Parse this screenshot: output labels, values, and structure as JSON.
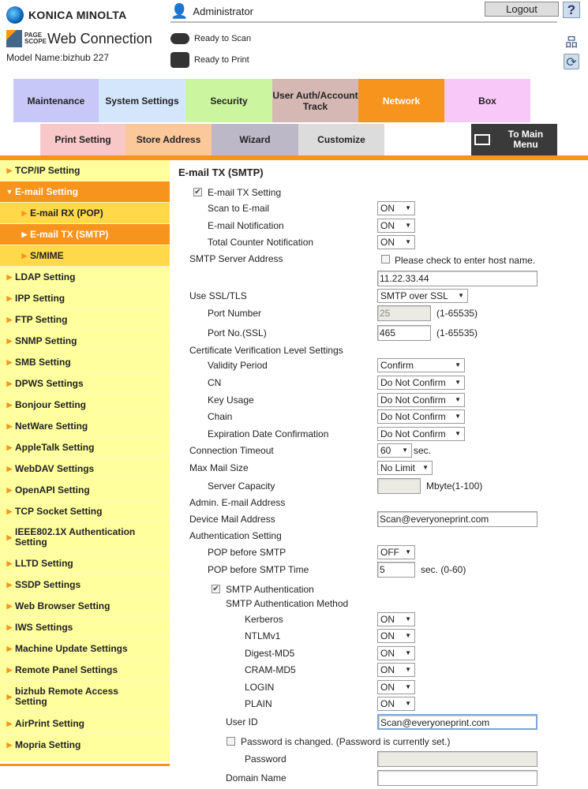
{
  "header": {
    "brand": "KONICA MINOLTA",
    "product": "Web Connection",
    "product_mark": "PAGE SCOPE",
    "model_name": "Model Name:bizhub 227",
    "user": "Administrator",
    "scan_status": "Ready to Scan",
    "print_status": "Ready to Print",
    "logout_label": "Logout",
    "help_label": "?"
  },
  "tabs": [
    {
      "label": "Maintenance",
      "color": "#c8c8f8"
    },
    {
      "label": "System Settings",
      "color": "#d4e6fb"
    },
    {
      "label": "Security",
      "color": "#ccf5a0"
    },
    {
      "label": "User Auth/Account Track",
      "color": "#d5b8b4"
    },
    {
      "label": "Network",
      "color": "#f7941d"
    },
    {
      "label": "Box",
      "color": "#f8c8f8"
    }
  ],
  "tabs2": [
    {
      "label": "Print Setting",
      "color": "#f8c8c8"
    },
    {
      "label": "Store Address",
      "color": "#fbc89a"
    },
    {
      "label": "Wizard",
      "color": "#bcb8c8"
    },
    {
      "label": "Customize",
      "color": "#dcdcdc"
    },
    {
      "label": "To Main Menu",
      "color": "#3a3a3a"
    }
  ],
  "sidebar": [
    {
      "label": "TCP/IP Setting"
    },
    {
      "label": "E-mail Setting",
      "state": "expanded-selected"
    },
    {
      "label": "E-mail RX (POP)",
      "sub": true
    },
    {
      "label": "E-mail TX (SMTP)",
      "sub": true,
      "state": "selected"
    },
    {
      "label": "S/MIME",
      "sub": true
    },
    {
      "label": "LDAP Setting"
    },
    {
      "label": "IPP Setting"
    },
    {
      "label": "FTP Setting"
    },
    {
      "label": "SNMP Setting"
    },
    {
      "label": "SMB Setting"
    },
    {
      "label": "DPWS Settings"
    },
    {
      "label": "Bonjour Setting"
    },
    {
      "label": "NetWare Setting"
    },
    {
      "label": "AppleTalk Setting"
    },
    {
      "label": "WebDAV Settings"
    },
    {
      "label": "OpenAPI Setting"
    },
    {
      "label": "TCP Socket Setting"
    },
    {
      "label": "IEEE802.1X Authentication Setting"
    },
    {
      "label": "LLTD Setting"
    },
    {
      "label": "SSDP Settings"
    },
    {
      "label": "Web Browser Setting"
    },
    {
      "label": "IWS Settings"
    },
    {
      "label": "Machine Update Settings"
    },
    {
      "label": "Remote Panel Settings"
    },
    {
      "label": "bizhub Remote Access Setting"
    },
    {
      "label": "AirPrint Setting"
    },
    {
      "label": "Mopria Setting"
    }
  ],
  "form": {
    "title": "E-mail TX (SMTP)",
    "rows": [
      {
        "label": "E-mail TX Setting",
        "checkbox": true
      },
      {
        "label": "Scan to E-mail",
        "select": "ON"
      },
      {
        "label": "E-mail Notification",
        "select": "ON"
      },
      {
        "label": "Total Counter Notification",
        "select": "ON"
      },
      {
        "label": "SMTP Server Address",
        "check_text": "Please check to enter host name.",
        "checked": false
      },
      {
        "input": "11.22.33.44"
      },
      {
        "label": "Use SSL/TLS",
        "select": "SMTP over SSL"
      },
      {
        "label": "Port Number",
        "input": "25",
        "disabled": true,
        "note": "(1-65535)"
      },
      {
        "label": "Port No.(SSL)",
        "input": "465",
        "note": "(1-65535)"
      },
      {
        "label": "Certificate Verification Level Settings"
      },
      {
        "label": "Validity Period",
        "select": "Confirm"
      },
      {
        "label": "CN",
        "select": "Do Not Confirm"
      },
      {
        "label": "Key Usage",
        "select": "Do Not Confirm"
      },
      {
        "label": "Chain",
        "select": "Do Not Confirm"
      },
      {
        "label": "Expiration Date Confirmation",
        "select": "Do Not Confirm"
      },
      {
        "label": "Connection Timeout",
        "select": "60",
        "note": "sec."
      },
      {
        "label": "Max Mail Size",
        "select": "No Limit"
      },
      {
        "label": "Server Capacity",
        "input": "",
        "disabled": true,
        "note": "Mbyte(1-100)"
      },
      {
        "label": "Admin. E-mail Address"
      },
      {
        "label": "Device Mail Address",
        "input": "Scan@everyoneprint.com"
      },
      {
        "label": "Authentication Setting"
      },
      {
        "label": "POP before SMTP",
        "select": "OFF"
      },
      {
        "label": "POP before SMTP Time",
        "input": "5",
        "note": "sec. (0-60)"
      },
      {
        "label": "SMTP Authentication",
        "checkbox": true
      },
      {
        "label": "SMTP Authentication Method"
      },
      {
        "label": "Kerberos",
        "select": "ON"
      },
      {
        "label": "NTLMv1",
        "select": "ON"
      },
      {
        "label": "Digest-MD5",
        "select": "ON"
      },
      {
        "label": "CRAM-MD5",
        "select": "ON"
      },
      {
        "label": "LOGIN",
        "select": "ON"
      },
      {
        "label": "PLAIN",
        "select": "ON"
      },
      {
        "label": "User ID",
        "input": "Scan@everyoneprint.com",
        "focused": true
      },
      {
        "label": "Password is changed.  (Password is currently set.)",
        "checkbox": false
      },
      {
        "label": "Password",
        "input": "",
        "disabled": true
      },
      {
        "label": "Domain Name",
        "input": ""
      }
    ]
  }
}
